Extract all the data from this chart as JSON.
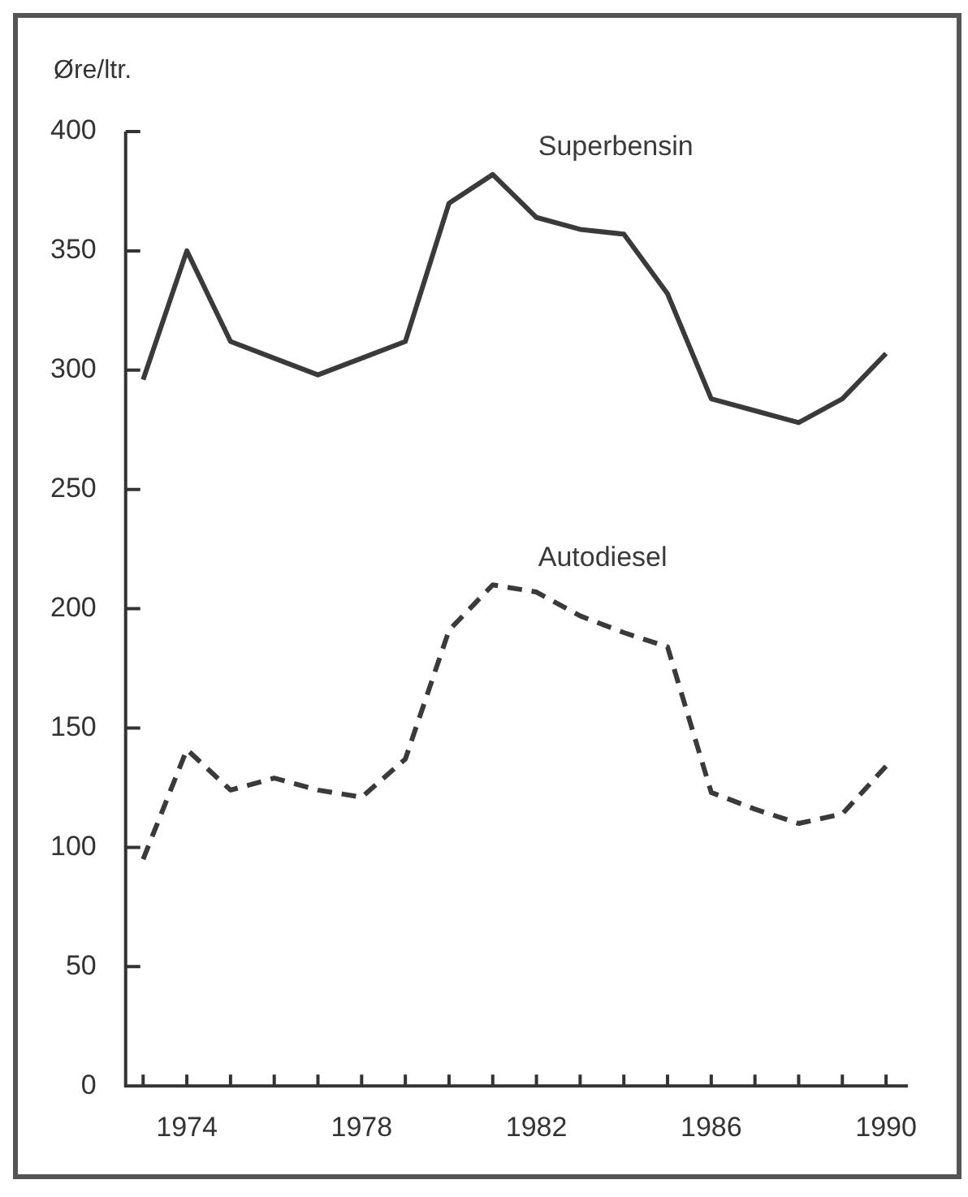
{
  "chart_data": {
    "type": "line",
    "ylabel": "Øre/ltr.",
    "x": [
      1973,
      1974,
      1975,
      1976,
      1977,
      1978,
      1979,
      1980,
      1981,
      1982,
      1983,
      1984,
      1985,
      1986,
      1987,
      1988,
      1989,
      1990
    ],
    "xlim": [
      1972.6,
      1990.5
    ],
    "xticks": [
      {
        "value": 1973,
        "label": null
      },
      1974,
      {
        "value": 1975,
        "label": null
      },
      {
        "value": 1976,
        "label": null
      },
      {
        "value": 1977,
        "label": null
      },
      1978,
      {
        "value": 1979,
        "label": null
      },
      {
        "value": 1980,
        "label": null
      },
      {
        "value": 1981,
        "label": null
      },
      1982,
      {
        "value": 1983,
        "label": null
      },
      {
        "value": 1984,
        "label": null
      },
      {
        "value": 1985,
        "label": null
      },
      1986,
      {
        "value": 1987,
        "label": null
      },
      {
        "value": 1988,
        "label": null
      },
      {
        "value": 1989,
        "label": null
      },
      1990
    ],
    "ylim": [
      0,
      400
    ],
    "yticks": [
      0,
      50,
      100,
      150,
      200,
      250,
      300,
      350,
      400
    ],
    "legend": false,
    "marker": "none",
    "series": [
      {
        "name": "Superbensin",
        "color": "#3a3a3a",
        "line_style": "solid",
        "values": [
          296,
          350,
          312,
          305,
          298,
          305,
          312,
          370,
          382,
          364,
          359,
          357,
          332,
          288,
          283,
          278,
          288,
          307
        ]
      },
      {
        "name": "Autodiesel",
        "color": "#3a3a3a",
        "line_style": "dashed",
        "values": [
          95,
          141,
          124,
          129,
          124,
          121,
          137,
          191,
          210,
          207,
          197,
          190,
          184,
          123,
          116,
          110,
          114,
          134
        ]
      }
    ]
  }
}
